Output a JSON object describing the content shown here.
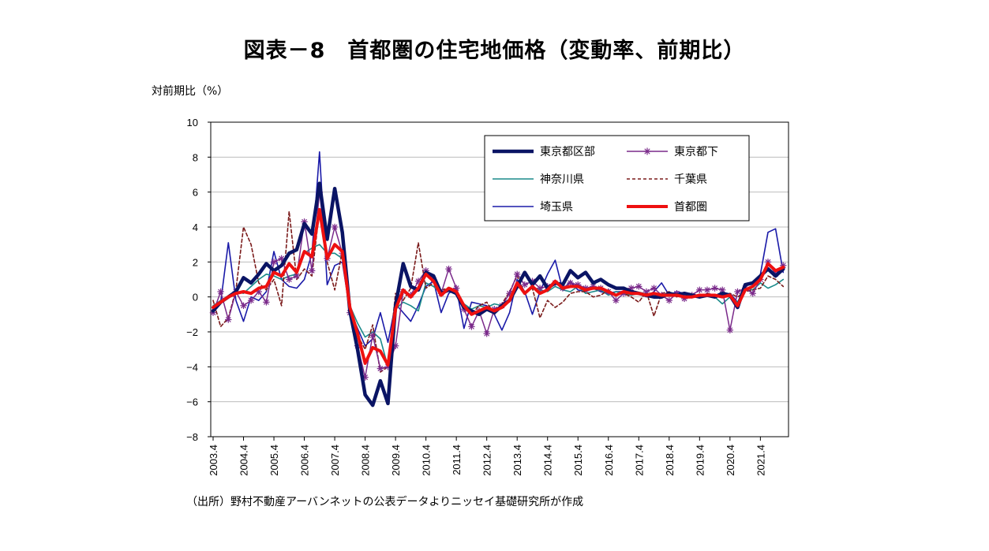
{
  "title": "図表－8　首都圏の住宅地価格（変動率、前期比）",
  "source": "（出所）野村不動産アーバンネットの公表データよりニッセイ基礎研究所が作成",
  "chart_data": {
    "type": "line",
    "title": "図表－8　首都圏の住宅地価格（変動率、前期比）",
    "xlabel": "",
    "ylabel": "対前期比（%）",
    "ylim": [
      -8,
      10
    ],
    "yticks": [
      -8,
      -6,
      -4,
      -2,
      0,
      2,
      4,
      6,
      8,
      10
    ],
    "x_start": "2003.4",
    "x_tick_labels": [
      "2003.4",
      "2004.4",
      "2005.4",
      "2006.4",
      "2007.4",
      "2008.4",
      "2009.4",
      "2010.4",
      "2011.4",
      "2012.4",
      "2013.4",
      "2014.4",
      "2015.4",
      "2016.4",
      "2017.4",
      "2018.4",
      "2019.4",
      "2020.4",
      "2021.4"
    ],
    "frequency": "quarterly",
    "legend_position": "top-right",
    "grid": true,
    "series": [
      {
        "name": "東京都区部",
        "color": "#0a1464",
        "style": "thick",
        "values": [
          -0.8,
          -0.3,
          0.0,
          0.3,
          1.1,
          0.8,
          1.3,
          1.9,
          1.5,
          1.8,
          2.5,
          2.7,
          4.2,
          3.6,
          6.5,
          3.3,
          6.2,
          3.7,
          -0.8,
          -3.0,
          -5.6,
          -6.2,
          -4.8,
          -6.1,
          -0.5,
          1.9,
          0.6,
          0.4,
          1.4,
          1.2,
          0.2,
          0.4,
          0.2,
          -0.6,
          -0.8,
          -1.0,
          -0.7,
          -0.9,
          -0.5,
          -0.2,
          0.6,
          1.4,
          0.7,
          1.2,
          0.5,
          0.8,
          0.7,
          1.5,
          1.1,
          1.4,
          0.8,
          1.0,
          0.7,
          0.5,
          0.5,
          0.3,
          0.2,
          0.1,
          0.0,
          0.0,
          0.2,
          0.1,
          0.2,
          0.1,
          0.0,
          0.1,
          0.0,
          0.2,
          0.1,
          -0.6,
          0.7,
          0.8,
          1.2,
          1.6,
          1.2,
          1.6
        ]
      },
      {
        "name": "東京都下",
        "color": "#7a2a8a",
        "style": "star",
        "values": [
          -0.9,
          0.3,
          -1.3,
          0.3,
          -0.5,
          -0.2,
          0.3,
          -0.3,
          2.0,
          2.2,
          1.0,
          1.2,
          4.3,
          1.5,
          6.0,
          2.2,
          4.0,
          2.5,
          -0.9,
          -2.8,
          -4.6,
          -2.2,
          -4.1,
          -4.0,
          -2.8,
          0.3,
          0.1,
          0.9,
          1.5,
          1.0,
          0.2,
          1.6,
          0.5,
          -0.7,
          -1.7,
          -0.8,
          -2.1,
          -0.7,
          -0.5,
          0.2,
          1.3,
          0.7,
          0.9,
          0.5,
          0.6,
          0.8,
          0.5,
          0.8,
          0.7,
          0.5,
          0.6,
          0.5,
          0.3,
          -0.2,
          0.2,
          0.5,
          0.6,
          0.3,
          0.5,
          0.1,
          -0.2,
          0.2,
          -0.1,
          0.1,
          0.4,
          0.4,
          0.5,
          0.4,
          -1.9,
          0.3,
          0.5,
          0.2,
          1.0,
          2.0,
          1.3,
          1.8
        ]
      },
      {
        "name": "神奈川県",
        "color": "#1a8a8a",
        "style": "thin",
        "values": [
          -0.5,
          -0.2,
          0.0,
          0.3,
          0.2,
          0.6,
          1.0,
          1.3,
          1.2,
          1.0,
          1.2,
          1.3,
          2.5,
          2.8,
          3.0,
          2.5,
          2.5,
          2.2,
          -0.5,
          -1.5,
          -2.3,
          -2.0,
          -2.4,
          -4.0,
          -0.7,
          -0.3,
          -0.5,
          -0.8,
          0.8,
          0.6,
          0.2,
          0.4,
          0.3,
          -0.4,
          -0.7,
          -0.5,
          -0.6,
          -0.4,
          -0.5,
          -0.2,
          0.6,
          0.3,
          0.5,
          0.4,
          0.3,
          0.6,
          0.4,
          0.3,
          0.6,
          0.2,
          0.3,
          0.4,
          0.1,
          0.3,
          0.2,
          0.1,
          0.2,
          0.1,
          0.0,
          0.0,
          0.1,
          0.1,
          0.0,
          0.1,
          0.0,
          0.1,
          0.0,
          -0.4,
          0.0,
          -0.3,
          0.5,
          0.4,
          0.8,
          0.5,
          0.7,
          1.0
        ]
      },
      {
        "name": "千葉県",
        "color": "#7a1a1a",
        "style": "dashed",
        "values": [
          -0.2,
          -1.7,
          -1.2,
          0.4,
          4.0,
          3.0,
          0.8,
          0.4,
          1.0,
          -0.5,
          4.9,
          1.0,
          1.6,
          1.2,
          5.0,
          2.0,
          0.4,
          2.6,
          -0.7,
          -2.2,
          -3.0,
          -1.6,
          -4.3,
          -4.0,
          0.2,
          -0.2,
          0.5,
          3.1,
          0.5,
          0.8,
          0.4,
          0.5,
          0.3,
          -0.4,
          -1.0,
          -0.5,
          -0.3,
          -1.0,
          -0.4,
          0.3,
          1.2,
          0.2,
          0.5,
          -1.2,
          -0.2,
          -0.6,
          -0.3,
          0.2,
          0.3,
          0.3,
          0.0,
          0.1,
          0.4,
          0.1,
          0.2,
          0.0,
          -0.3,
          0.3,
          -1.1,
          0.2,
          0.3,
          0.0,
          0.2,
          0.0,
          0.0,
          0.2,
          0.1,
          0.0,
          0.2,
          0.0,
          0.3,
          0.4,
          0.5,
          1.2,
          1.0,
          0.6
        ]
      },
      {
        "name": "埼玉県",
        "color": "#1a1aa8",
        "style": "thin",
        "values": [
          -0.6,
          -0.3,
          3.1,
          -0.2,
          -1.4,
          0.0,
          -0.2,
          0.3,
          2.6,
          1.0,
          0.6,
          0.5,
          1.0,
          2.5,
          8.3,
          0.7,
          1.8,
          2.0,
          -0.8,
          -1.8,
          -2.8,
          -2.4,
          -0.9,
          -2.6,
          -0.4,
          -0.9,
          -1.4,
          -0.5,
          0.6,
          0.9,
          -0.9,
          0.2,
          0.5,
          -1.8,
          -0.3,
          -0.4,
          -0.5,
          -1.0,
          -1.9,
          -0.9,
          1.0,
          0.3,
          -1.0,
          0.3,
          1.3,
          2.1,
          0.4,
          0.9,
          0.4,
          0.3,
          0.5,
          0.3,
          0.2,
          0.3,
          0.3,
          0.1,
          0.2,
          0.0,
          0.3,
          0.8,
          0.1,
          0.3,
          0.2,
          0.1,
          0.0,
          0.2,
          0.1,
          0.0,
          0.2,
          -0.3,
          0.4,
          0.6,
          1.3,
          3.7,
          3.9,
          1.4
        ]
      },
      {
        "name": "首都圏",
        "color": "#ee1010",
        "style": "thick",
        "values": [
          -0.6,
          -0.3,
          0.0,
          0.2,
          0.3,
          0.2,
          0.5,
          0.6,
          1.4,
          1.2,
          1.9,
          1.4,
          2.6,
          2.3,
          5.0,
          2.2,
          3.0,
          2.6,
          -0.6,
          -2.1,
          -3.8,
          -2.9,
          -3.1,
          -3.9,
          -0.7,
          0.4,
          0.0,
          0.5,
          1.3,
          0.9,
          0.1,
          0.5,
          0.3,
          -0.5,
          -1.0,
          -0.8,
          -0.6,
          -0.8,
          -0.6,
          -0.2,
          0.8,
          0.2,
          0.6,
          0.2,
          0.4,
          0.9,
          0.5,
          0.6,
          0.6,
          0.4,
          0.5,
          0.5,
          0.3,
          0.1,
          0.3,
          0.2,
          0.2,
          0.1,
          0.2,
          0.1,
          0.1,
          0.1,
          0.0,
          0.0,
          0.1,
          0.1,
          0.1,
          0.0,
          0.1,
          -0.5,
          0.4,
          0.6,
          1.0,
          1.9,
          1.5,
          1.7
        ]
      }
    ]
  }
}
